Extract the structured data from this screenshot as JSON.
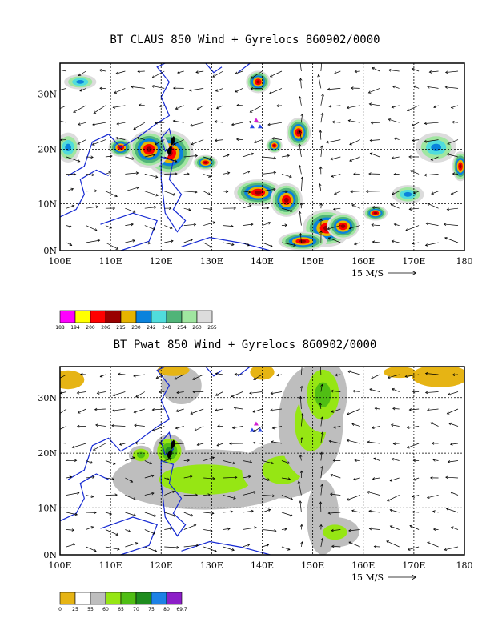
{
  "panels": [
    {
      "id": "claus",
      "title": "BT CLAUS 850 Wind + Gyrelocs 860902/0000",
      "x_ticks": [
        "100E",
        "110E",
        "120E",
        "130E",
        "140E",
        "150E",
        "160E",
        "170E",
        "180"
      ],
      "y_ticks": [
        "0N",
        "10N",
        "20N",
        "30N"
      ],
      "scale_label": "15 M/S",
      "colorbar_labels": [
        "188",
        "194",
        "200",
        "206",
        "215",
        "230",
        "242",
        "248",
        "254",
        "260",
        "265"
      ],
      "colorbar_colors": [
        "#ff00ff",
        "#ffff00",
        "#ff0000",
        "#990000",
        "#e6b400",
        "#0a82dc",
        "#50dcdc",
        "#50b478",
        "#a0e6a0",
        "#dcdcdc"
      ]
    },
    {
      "id": "pwat",
      "title": "BT Pwat 850 Wind + Gyrelocs 860902/0000",
      "x_ticks": [
        "100E",
        "110E",
        "120E",
        "130E",
        "140E",
        "150E",
        "160E",
        "170E",
        "180"
      ],
      "y_ticks": [
        "0N",
        "10N",
        "20N",
        "30N"
      ],
      "scale_label": "15 M/S",
      "colorbar_labels": [
        "0",
        "25",
        "55",
        "60",
        "65",
        "70",
        "75",
        "80",
        "69.7"
      ],
      "colorbar_colors": [
        "#e6b414",
        "#ffffff",
        "#bebebe",
        "#96e614",
        "#50be14",
        "#1e8c1e",
        "#1e82e6",
        "#8c1ec8"
      ]
    }
  ]
}
